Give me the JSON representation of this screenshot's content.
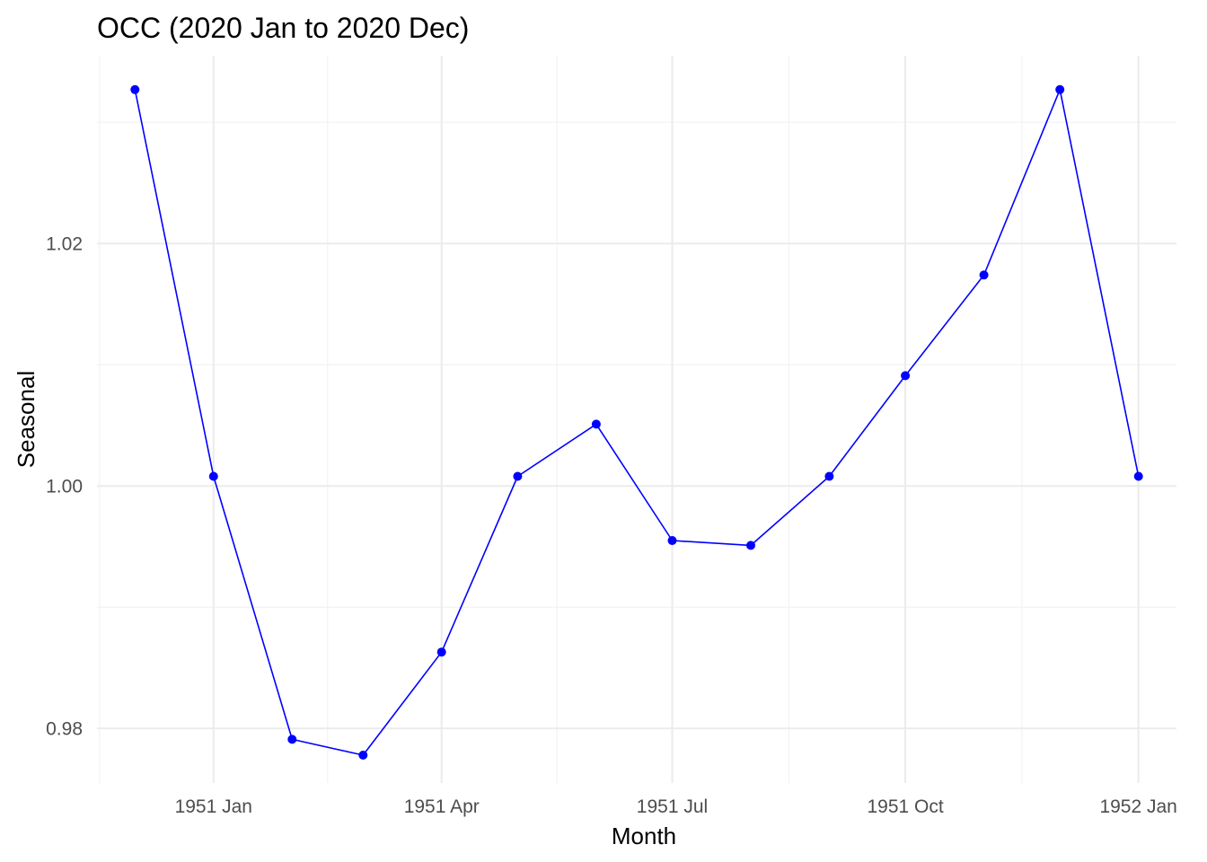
{
  "chart_data": {
    "type": "line",
    "title": "OCC (2020 Jan to 2020 Dec)",
    "xlabel": "Month",
    "ylabel": "Seasonal",
    "x": [
      "1950 Dec",
      "1951 Jan",
      "1951 Feb",
      "1951 Mar",
      "1951 Apr",
      "1951 May",
      "1951 Jun",
      "1951 Jul",
      "1951 Aug",
      "1951 Sep",
      "1951 Oct",
      "1951 Nov",
      "1951 Dec",
      "1952 Jan"
    ],
    "series": [
      {
        "values": [
          1.0327,
          1.0008,
          0.9791,
          0.9778,
          0.9863,
          1.0008,
          1.0051,
          0.9955,
          0.9951,
          1.0008,
          1.0091,
          1.0174,
          1.0327,
          1.0008
        ]
      }
    ],
    "x_tick_labels": [
      "1951 Jan",
      "1951 Apr",
      "1951 Jul",
      "1951 Oct",
      "1952 Jan"
    ],
    "y_ticks": [
      0.98,
      1.0,
      1.02
    ],
    "y_tick_labels": [
      "0.98",
      "1.00",
      "1.02"
    ],
    "ylim": [
      0.9755,
      1.0355
    ],
    "xlim": [
      "1950 Nov 16",
      "1952 Jan 16"
    ],
    "grid": true,
    "line_color": "#0000ff",
    "point_color": "#0000ff"
  }
}
